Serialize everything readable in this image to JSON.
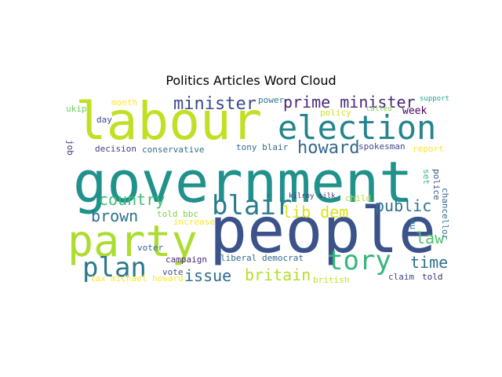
{
  "figure": {
    "title": "Politics Articles Word Cloud"
  },
  "chart_data": {
    "type": "wordcloud",
    "title": "Politics Articles Word Cloud",
    "words": [
      {
        "text": "government",
        "color": "#21918c"
      },
      {
        "text": "people",
        "color": "#3b528b"
      },
      {
        "text": "labour",
        "color": "#c2df23"
      },
      {
        "text": "party",
        "color": "#addc30"
      },
      {
        "text": "election",
        "color": "#25858e"
      },
      {
        "text": "tory",
        "color": "#35b779"
      },
      {
        "text": "plan",
        "color": "#2a788e"
      },
      {
        "text": "blair",
        "color": "#287c8e"
      },
      {
        "text": "minister",
        "color": "#3e4a89"
      },
      {
        "text": "prime minister",
        "color": "#482878"
      },
      {
        "text": "howard",
        "color": "#31688e"
      },
      {
        "text": "country",
        "color": "#3dbc74"
      },
      {
        "text": "brown",
        "color": "#2c728e"
      },
      {
        "text": "lib dem",
        "color": "#d8e219"
      },
      {
        "text": "public",
        "color": "#2c728e"
      },
      {
        "text": "law",
        "color": "#4ec36b"
      },
      {
        "text": "time",
        "color": "#2d708e"
      },
      {
        "text": "issue",
        "color": "#2f6c8e"
      },
      {
        "text": "britain",
        "color": "#b5de2b"
      },
      {
        "text": "ukip",
        "color": "#6ccd5a"
      },
      {
        "text": "job",
        "color": "#472d7b"
      },
      {
        "text": "month",
        "color": "#fde725"
      },
      {
        "text": "day",
        "color": "#3e4989"
      },
      {
        "text": "power",
        "color": "#2a788e"
      },
      {
        "text": "called",
        "color": "#7ad151"
      },
      {
        "text": "support",
        "color": "#20a486"
      },
      {
        "text": "policy",
        "color": "#d0e11c"
      },
      {
        "text": "week",
        "color": "#440154"
      },
      {
        "text": "decision",
        "color": "#433e85"
      },
      {
        "text": "conservative",
        "color": "#2e6f8e"
      },
      {
        "text": "tony blair",
        "color": "#30698e"
      },
      {
        "text": "spokesman",
        "color": "#3e4a89"
      },
      {
        "text": "report",
        "color": "#fde725"
      },
      {
        "text": "kilroy silk",
        "color": "#472d7b"
      },
      {
        "text": "set",
        "color": "#35b779"
      },
      {
        "text": "child",
        "color": "#b5de2b"
      },
      {
        "text": "police",
        "color": "#3b528b"
      },
      {
        "text": "eu",
        "color": "#277f8e"
      },
      {
        "text": "told bbc",
        "color": "#7ad151"
      },
      {
        "text": "increase",
        "color": "#fde725"
      },
      {
        "text": "chancellor",
        "color": "#31688e"
      },
      {
        "text": "voter",
        "color": "#31688e"
      },
      {
        "text": "campaign",
        "color": "#482878"
      },
      {
        "text": "liberal democrat",
        "color": "#31688e"
      },
      {
        "text": "vote",
        "color": "#3b528b"
      },
      {
        "text": "tax",
        "color": "#fde725"
      },
      {
        "text": "michael howard",
        "color": "#fde725"
      },
      {
        "text": "british",
        "color": "#c2df23"
      },
      {
        "text": "claim",
        "color": "#3e4989"
      },
      {
        "text": "told",
        "color": "#482878"
      }
    ]
  }
}
